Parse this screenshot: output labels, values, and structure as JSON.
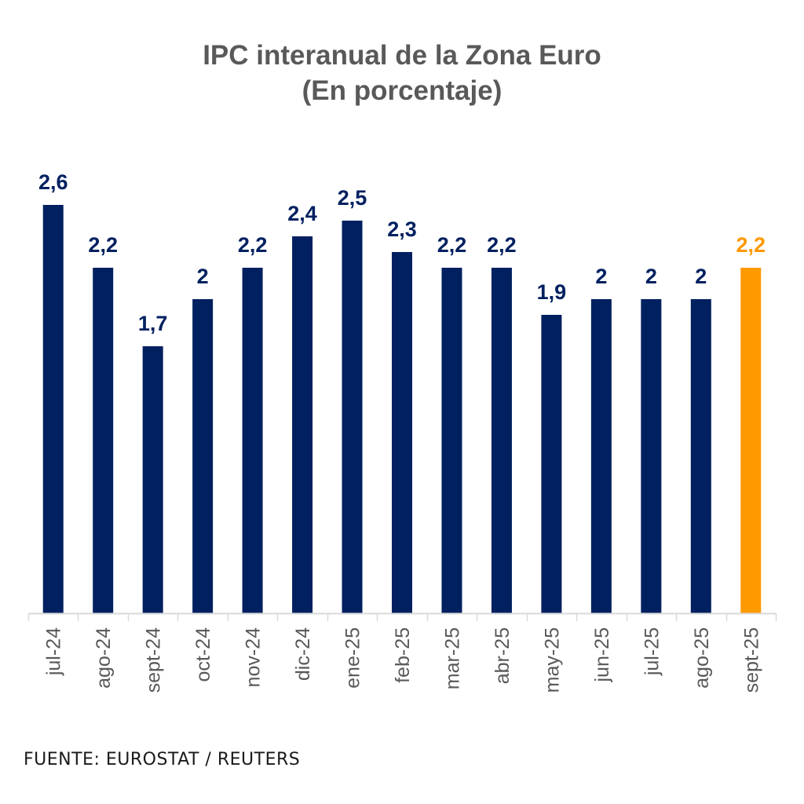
{
  "chart_data": {
    "type": "bar",
    "title": "IPC interanual de la Zona Euro",
    "subtitle": "(En porcentaje)",
    "xlabel": "",
    "ylabel": "",
    "ylim": [
      0,
      2.6
    ],
    "grid": false,
    "legend": "none",
    "categories": [
      "jul-24",
      "ago-24",
      "sept-24",
      "oct-24",
      "nov-24",
      "dic-24",
      "ene-25",
      "feb-25",
      "mar-25",
      "abr-25",
      "may-25",
      "jun-25",
      "jul-25",
      "ago-25",
      "sept-25"
    ],
    "values": [
      2.6,
      2.2,
      1.7,
      2.0,
      2.2,
      2.4,
      2.5,
      2.3,
      2.2,
      2.2,
      1.9,
      2.0,
      2.0,
      2.0,
      2.2
    ],
    "value_labels": [
      "2,6",
      "2,2",
      "1,7",
      "2",
      "2,2",
      "2,4",
      "2,5",
      "2,3",
      "2,2",
      "2,2",
      "1,9",
      "2",
      "2",
      "2",
      "2,2"
    ],
    "highlight_index": 14,
    "colors": {
      "bar": "#002060",
      "highlight": "#FF9900",
      "axis": "#d9d9d9",
      "tick_text": "#595959",
      "title": "#595959"
    },
    "source": "FUENTE: EUROSTAT / REUTERS"
  }
}
